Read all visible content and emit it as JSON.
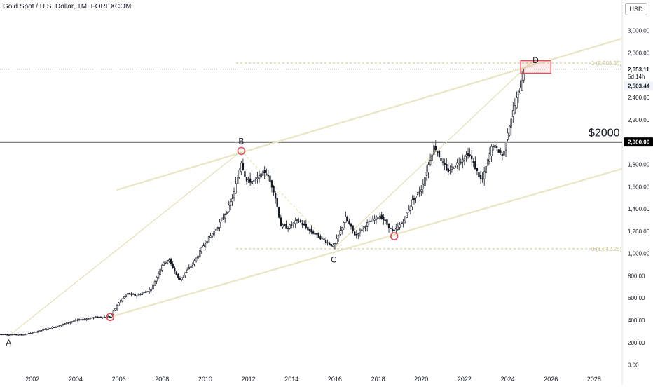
{
  "header": {
    "title": "Gold Spot / U.S. Dollar, 1M, FOREXCOM",
    "currency": "USD"
  },
  "colors": {
    "up": "#131722",
    "down": "#131722",
    "channel": "#ece6c8",
    "guide": "#e0d9a8",
    "fib": "#c9c08a",
    "level2000": "#000000",
    "circle": "#e0505a",
    "box": "#e0505a"
  },
  "chart_data": {
    "type": "candlestick",
    "title": "Gold Spot / U.S. Dollar, 1M, FOREXCOM",
    "ylabel": "USD",
    "xlim": [
      2000.5,
      2029.3
    ],
    "ylim": [
      -185,
      3275
    ],
    "x_ticks": [
      "2002",
      "2004",
      "2006",
      "2008",
      "2010",
      "2012",
      "2014",
      "2016",
      "2018",
      "2020",
      "2022",
      "2024",
      "2026",
      "2028"
    ],
    "y_ticks": [
      "0.00",
      "200.00",
      "400.00",
      "600.00",
      "800.00",
      "1,000.00",
      "1,200.00",
      "1,400.00",
      "1,600.00",
      "1,800.00",
      "2,000.00",
      "2,200.00",
      "2,400.00",
      "2,600.00",
      "2,800.00",
      "3,000.00"
    ],
    "y_tick_values": [
      0,
      200,
      400,
      600,
      800,
      1000,
      1200,
      1400,
      1600,
      1800,
      2000,
      2200,
      2400,
      2600,
      2800,
      3000
    ],
    "price_keypoints": [
      [
        2000.5,
        275
      ],
      [
        2001.5,
        270
      ],
      [
        2002.0,
        290
      ],
      [
        2003.0,
        340
      ],
      [
        2004.0,
        400
      ],
      [
        2005.0,
        430
      ],
      [
        2005.6,
        430
      ],
      [
        2006.0,
        560
      ],
      [
        2006.4,
        640
      ],
      [
        2006.8,
        620
      ],
      [
        2007.5,
        680
      ],
      [
        2008.0,
        900
      ],
      [
        2008.3,
        950
      ],
      [
        2008.8,
        760
      ],
      [
        2009.5,
        930
      ],
      [
        2010.0,
        1100
      ],
      [
        2010.5,
        1220
      ],
      [
        2011.0,
        1380
      ],
      [
        2011.3,
        1520
      ],
      [
        2011.67,
        1830
      ],
      [
        2011.9,
        1650
      ],
      [
        2012.3,
        1650
      ],
      [
        2012.8,
        1740
      ],
      [
        2013.2,
        1550
      ],
      [
        2013.5,
        1250
      ],
      [
        2013.8,
        1230
      ],
      [
        2014.3,
        1300
      ],
      [
        2014.8,
        1210
      ],
      [
        2015.5,
        1120
      ],
      [
        2015.95,
        1060
      ],
      [
        2016.5,
        1320
      ],
      [
        2016.95,
        1160
      ],
      [
        2017.5,
        1270
      ],
      [
        2018.1,
        1340
      ],
      [
        2018.7,
        1190
      ],
      [
        2019.2,
        1300
      ],
      [
        2019.6,
        1480
      ],
      [
        2020.0,
        1580
      ],
      [
        2020.6,
        1970
      ],
      [
        2021.2,
        1730
      ],
      [
        2021.6,
        1800
      ],
      [
        2022.2,
        1900
      ],
      [
        2022.8,
        1640
      ],
      [
        2023.3,
        1980
      ],
      [
        2023.8,
        1870
      ],
      [
        2023.95,
        2060
      ],
      [
        2024.2,
        2240
      ],
      [
        2024.5,
        2440
      ],
      [
        2024.78,
        2653
      ]
    ],
    "last_price": "2,653.11",
    "countdown": "5d 14h",
    "secondary_price": "2,503.44",
    "level_label": "$2000",
    "level_value": 2000,
    "level_tag": "2,000.00",
    "fib_levels": [
      {
        "label": "1 (2,708.35)",
        "value": 2708.35
      },
      {
        "label": "0 (1,042.25)",
        "value": 1042.25
      }
    ],
    "points": [
      {
        "label": "A",
        "x": 2000.9,
        "y": 275
      },
      {
        "label": "B",
        "x": 2011.67,
        "y": 1920
      },
      {
        "label": "C",
        "x": 2015.95,
        "y": 1045
      },
      {
        "label": "D",
        "x": 2025.1,
        "y": 2720
      }
    ],
    "channel_upper": [
      [
        2005.9,
        1570
      ],
      [
        2029.3,
        2930
      ]
    ],
    "channel_lower": [
      [
        2005.6,
        430
      ],
      [
        2029.3,
        1760
      ]
    ],
    "guide_lines": [
      [
        [
          2001.0,
          275
        ],
        [
          2011.67,
          1920
        ]
      ],
      [
        [
          2011.67,
          1920
        ],
        [
          2015.95,
          1045
        ]
      ],
      [
        [
          2015.95,
          1045
        ],
        [
          2025.1,
          2720
        ]
      ]
    ],
    "circles": [
      [
        2005.6,
        430
      ],
      [
        2011.67,
        1920
      ],
      [
        2018.75,
        1155
      ]
    ],
    "target_box": {
      "x0": 2024.6,
      "x1": 2026.0,
      "y0": 2618,
      "y1": 2730
    }
  }
}
